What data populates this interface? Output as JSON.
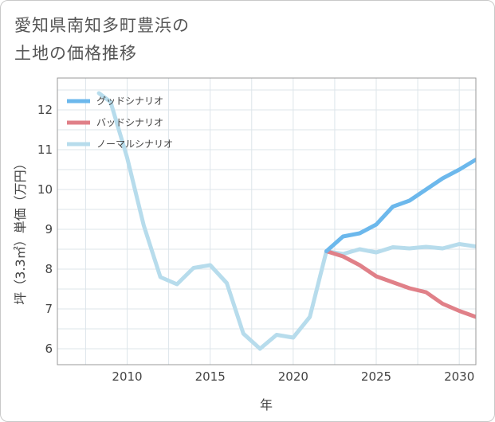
{
  "title": {
    "line1": "愛知県南知多町豊浜の",
    "line2": "土地の価格推移"
  },
  "chart_data": {
    "type": "line",
    "xlabel": "年",
    "ylabel": "坪（3.3㎡）単価（万円）",
    "xlim": [
      2005.8,
      2031
    ],
    "ylim": [
      5.6,
      12.8
    ],
    "xticks": [
      2010,
      2015,
      2020,
      2025,
      2030
    ],
    "yticks": [
      6,
      7,
      8,
      9,
      10,
      11,
      12
    ],
    "grid": true,
    "legend_position": "top-left",
    "series": [
      {
        "name": "グッドシナリオ",
        "color": "#6cb8ec",
        "x": [
          2022,
          2023,
          2024,
          2025,
          2026,
          2027,
          2028,
          2029,
          2030,
          2031
        ],
        "y": [
          8.45,
          8.82,
          8.9,
          9.12,
          9.57,
          9.72,
          10.0,
          10.28,
          10.5,
          10.75
        ]
      },
      {
        "name": "バッドシナリオ",
        "color": "#e08088",
        "x": [
          2022,
          2023,
          2024,
          2025,
          2026,
          2027,
          2028,
          2029,
          2030,
          2031
        ],
        "y": [
          8.45,
          8.32,
          8.1,
          7.82,
          7.67,
          7.52,
          7.42,
          7.13,
          6.95,
          6.8
        ]
      },
      {
        "name": "ノーマルシナリオ",
        "color": "#b7dcec",
        "x": [
          2008.3,
          2009,
          2010,
          2011,
          2012,
          2013,
          2014,
          2015,
          2016,
          2017,
          2018,
          2019,
          2020,
          2021,
          2022,
          2023,
          2024,
          2025,
          2026,
          2027,
          2028,
          2029,
          2030,
          2031
        ],
        "y": [
          12.42,
          12.2,
          10.8,
          9.1,
          7.8,
          7.62,
          8.03,
          8.1,
          7.65,
          6.38,
          6.0,
          6.35,
          6.28,
          6.8,
          8.45,
          8.38,
          8.5,
          8.42,
          8.55,
          8.52,
          8.56,
          8.52,
          8.63,
          8.57
        ]
      }
    ]
  }
}
